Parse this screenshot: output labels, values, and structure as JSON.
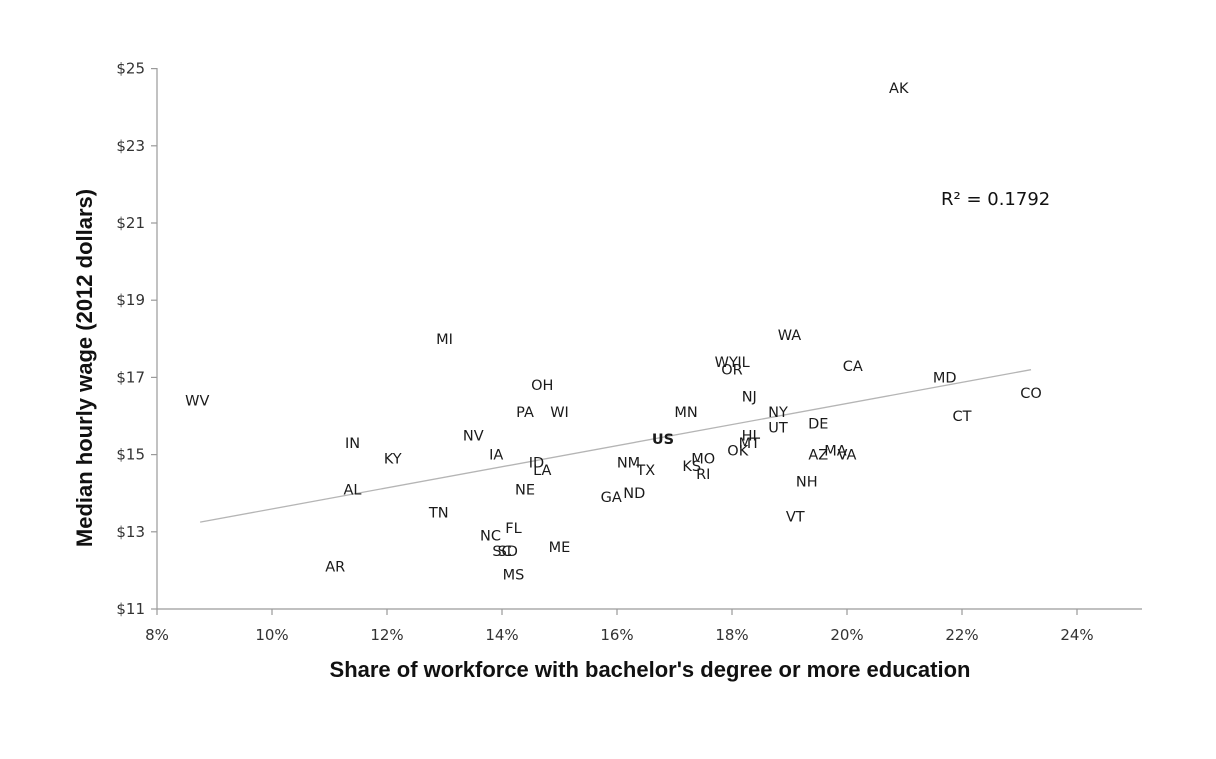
{
  "chart_data": {
    "type": "scatter",
    "title": "",
    "xlabel": "Share of workforce with bachelor's degree or more education",
    "ylabel": "Median hourly wage (2012 dollars)",
    "xlim": [
      8,
      25
    ],
    "ylim": [
      11,
      25
    ],
    "x_ticks": [
      8,
      10,
      12,
      14,
      16,
      18,
      20,
      22,
      24
    ],
    "x_tick_labels": [
      "8%",
      "10%",
      "12%",
      "14%",
      "16%",
      "18%",
      "20%",
      "22%",
      "24%"
    ],
    "y_ticks": [
      11,
      13,
      15,
      17,
      19,
      21,
      23,
      25
    ],
    "y_tick_labels": [
      "$11",
      "$13",
      "$15",
      "$17",
      "$19",
      "$21",
      "$23",
      "$25"
    ],
    "grid": false,
    "annotation": "R² = 0.1792",
    "trendline": {
      "x": [
        8.75,
        23.2
      ],
      "y": [
        13.25,
        17.2
      ]
    },
    "points": [
      {
        "label": "AK",
        "x": 20.9,
        "y": 24.5
      },
      {
        "label": "WA",
        "x": 19.0,
        "y": 18.1
      },
      {
        "label": "MI",
        "x": 13.0,
        "y": 18.0
      },
      {
        "label": "WY",
        "x": 17.9,
        "y": 17.4
      },
      {
        "label": "IL",
        "x": 18.2,
        "y": 17.4
      },
      {
        "label": "OR",
        "x": 18.0,
        "y": 17.2
      },
      {
        "label": "CA",
        "x": 20.1,
        "y": 17.3
      },
      {
        "label": "MD",
        "x": 21.7,
        "y": 17.0
      },
      {
        "label": "OH",
        "x": 14.7,
        "y": 16.8
      },
      {
        "label": "CO",
        "x": 23.2,
        "y": 16.6
      },
      {
        "label": "WV",
        "x": 8.7,
        "y": 16.4
      },
      {
        "label": "NJ",
        "x": 18.3,
        "y": 16.5
      },
      {
        "label": "PA",
        "x": 14.4,
        "y": 16.1
      },
      {
        "label": "WI",
        "x": 15.0,
        "y": 16.1
      },
      {
        "label": "MN",
        "x": 17.2,
        "y": 16.1
      },
      {
        "label": "NY",
        "x": 18.8,
        "y": 16.1
      },
      {
        "label": "CT",
        "x": 22.0,
        "y": 16.0
      },
      {
        "label": "UT",
        "x": 18.8,
        "y": 15.7
      },
      {
        "label": "DE",
        "x": 19.5,
        "y": 15.8
      },
      {
        "label": "NV",
        "x": 13.5,
        "y": 15.5
      },
      {
        "label": "US",
        "x": 16.8,
        "y": 15.4
      },
      {
        "label": "HI",
        "x": 18.3,
        "y": 15.5
      },
      {
        "label": "IN",
        "x": 11.4,
        "y": 15.3
      },
      {
        "label": "MT",
        "x": 18.3,
        "y": 15.3
      },
      {
        "label": "OK",
        "x": 18.1,
        "y": 15.1
      },
      {
        "label": "MA",
        "x": 19.8,
        "y": 15.1
      },
      {
        "label": "AZ",
        "x": 19.5,
        "y": 15.0
      },
      {
        "label": "VA",
        "x": 20.0,
        "y": 15.0
      },
      {
        "label": "IA",
        "x": 13.9,
        "y": 15.0
      },
      {
        "label": "KY",
        "x": 12.1,
        "y": 14.9
      },
      {
        "label": "MO",
        "x": 17.5,
        "y": 14.9
      },
      {
        "label": "ID",
        "x": 14.6,
        "y": 14.8
      },
      {
        "label": "NM",
        "x": 16.2,
        "y": 14.8
      },
      {
        "label": "KS",
        "x": 17.3,
        "y": 14.7
      },
      {
        "label": "TX",
        "x": 16.5,
        "y": 14.6
      },
      {
        "label": "LA",
        "x": 14.7,
        "y": 14.6
      },
      {
        "label": "RI",
        "x": 17.5,
        "y": 14.5
      },
      {
        "label": "NH",
        "x": 19.3,
        "y": 14.3
      },
      {
        "label": "AL",
        "x": 11.4,
        "y": 14.1
      },
      {
        "label": "NE",
        "x": 14.4,
        "y": 14.1
      },
      {
        "label": "ND",
        "x": 16.3,
        "y": 14.0
      },
      {
        "label": "GA",
        "x": 15.9,
        "y": 13.9
      },
      {
        "label": "TN",
        "x": 12.9,
        "y": 13.5
      },
      {
        "label": "VT",
        "x": 19.1,
        "y": 13.4
      },
      {
        "label": "FL",
        "x": 14.2,
        "y": 13.1
      },
      {
        "label": "NC",
        "x": 13.8,
        "y": 12.9
      },
      {
        "label": "ME",
        "x": 15.0,
        "y": 12.6
      },
      {
        "label": "SC",
        "x": 14.0,
        "y": 12.5
      },
      {
        "label": "SD",
        "x": 14.1,
        "y": 12.5
      },
      {
        "label": "AR",
        "x": 11.1,
        "y": 12.1
      },
      {
        "label": "MS",
        "x": 14.2,
        "y": 11.9
      }
    ]
  }
}
